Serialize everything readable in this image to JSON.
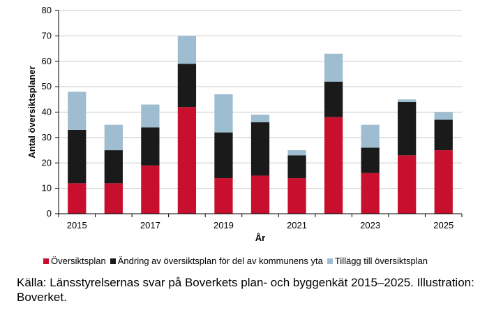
{
  "chart_data": {
    "type": "bar",
    "stacked": true,
    "categories": [
      "2015",
      "2016",
      "2017",
      "2018",
      "2019",
      "2020",
      "2021",
      "2022",
      "2023",
      "2024",
      "2025"
    ],
    "tick_labels": [
      "2015",
      "",
      "2017",
      "",
      "2019",
      "",
      "2021",
      "",
      "2023",
      "",
      "2025"
    ],
    "series": [
      {
        "name": "Översiktsplan",
        "color": "#c8102e",
        "values": [
          12,
          12,
          19,
          42,
          14,
          15,
          14,
          38,
          16,
          23,
          25
        ]
      },
      {
        "name": "Ändring av översiktsplan för del av kommunens yta",
        "color": "#1a1a1a",
        "values": [
          21,
          13,
          15,
          17,
          18,
          21,
          9,
          14,
          10,
          21,
          12
        ]
      },
      {
        "name": "Tillägg till översiktsplan",
        "color": "#9fbdd1",
        "values": [
          15,
          10,
          9,
          11,
          15,
          3,
          2,
          11,
          9,
          1,
          3
        ]
      }
    ],
    "ylim": [
      0,
      80
    ],
    "yticks": [
      0,
      10,
      20,
      30,
      40,
      50,
      60,
      70,
      80
    ],
    "xlabel": "År",
    "ylabel": "Antal översiktsplaner",
    "grid": true,
    "legend_position": "bottom"
  },
  "caption": "Källa: Länsstyrelsernas svar på Boverkets plan- och byggenkät 2015–2025. Illustration: Boverket."
}
